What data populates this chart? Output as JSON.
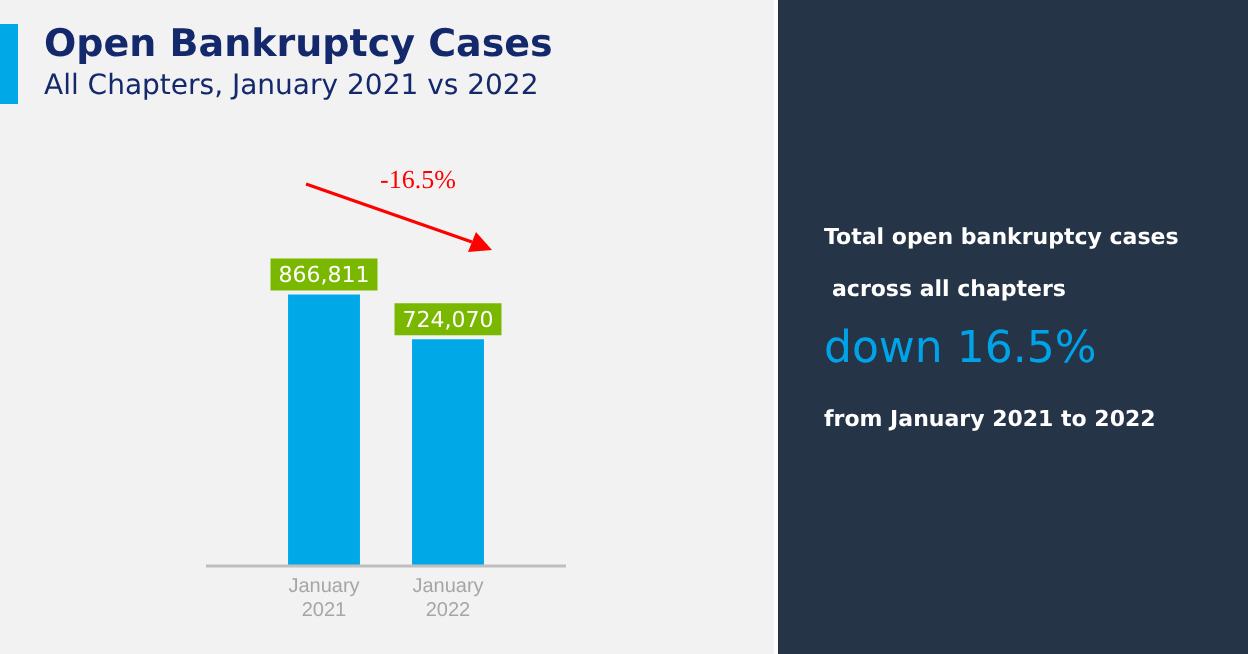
{
  "chart_data": {
    "type": "bar",
    "title": "Open Bankruptcy Cases",
    "subtitle": "All Chapters, January 2021 vs 2022",
    "categories": [
      "January 2021",
      "January 2022"
    ],
    "values": [
      866811,
      724070
    ],
    "color": "#00a8e8",
    "tick_labels": "x",
    "grid": false,
    "legend": false,
    "value_labels": [
      "866,811",
      "724,070"
    ],
    "annotations": [
      "-16.5%",
      "Total open bankruptcy cases",
      "across all chapters",
      "down 16.5%",
      "from January 2021 to 2022"
    ]
  }
}
